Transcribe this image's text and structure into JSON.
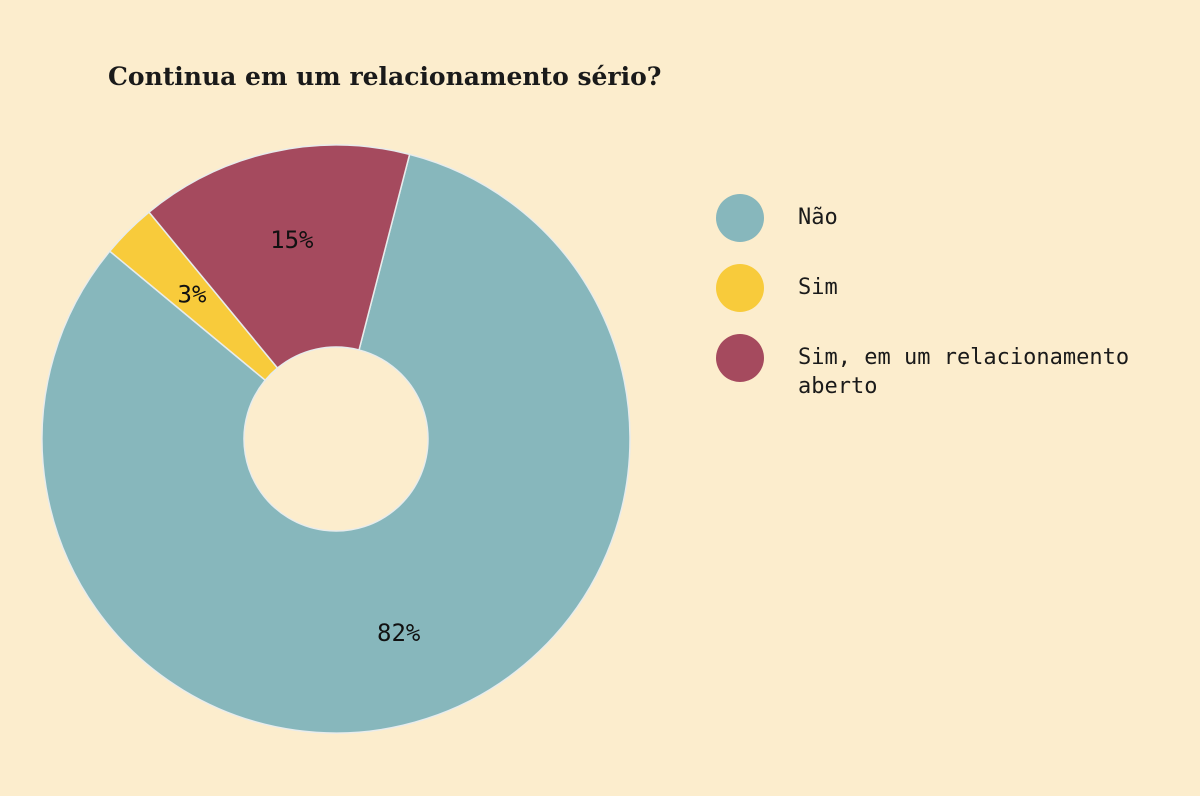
{
  "chart_data": {
    "type": "pie",
    "title": "Continua em um relacionamento sério?",
    "donut": true,
    "legend_position": "right",
    "slices": [
      {
        "label": "Não",
        "value": 82,
        "display": "82%",
        "color": "#87b7bc"
      },
      {
        "label": "Sim",
        "value": 3,
        "display": "3%",
        "color": "#f8cb3b"
      },
      {
        "label": "Sim, em um relacionamento aberto",
        "value": 15,
        "display": "15%",
        "color": "#a54a5e"
      }
    ]
  },
  "colors": {
    "background": "#fcedcd",
    "separator": "#e8ecec"
  }
}
